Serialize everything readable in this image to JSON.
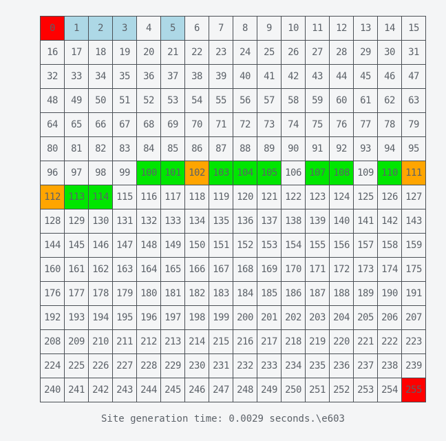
{
  "colors": {
    "default_bg": "#f4f5f6",
    "red": "#ff0000",
    "light_blue": "#add8e6",
    "green": "#00e600",
    "orange": "#ffa500"
  },
  "grid": {
    "cells": [
      {
        "label": "0",
        "state": "red"
      },
      {
        "label": "1",
        "state": "light_blue"
      },
      {
        "label": "2",
        "state": "light_blue"
      },
      {
        "label": "3",
        "state": "light_blue"
      },
      {
        "label": "4",
        "state": "default"
      },
      {
        "label": "5",
        "state": "light_blue"
      },
      {
        "label": "6",
        "state": "default"
      },
      {
        "label": "7",
        "state": "default"
      },
      {
        "label": "8",
        "state": "default"
      },
      {
        "label": "9",
        "state": "default"
      },
      {
        "label": "10",
        "state": "default"
      },
      {
        "label": "11",
        "state": "default"
      },
      {
        "label": "12",
        "state": "default"
      },
      {
        "label": "13",
        "state": "default"
      },
      {
        "label": "14",
        "state": "default"
      },
      {
        "label": "15",
        "state": "default"
      },
      {
        "label": "16",
        "state": "default"
      },
      {
        "label": "17",
        "state": "default"
      },
      {
        "label": "18",
        "state": "default"
      },
      {
        "label": "19",
        "state": "default"
      },
      {
        "label": "20",
        "state": "default"
      },
      {
        "label": "21",
        "state": "default"
      },
      {
        "label": "22",
        "state": "default"
      },
      {
        "label": "23",
        "state": "default"
      },
      {
        "label": "24",
        "state": "default"
      },
      {
        "label": "25",
        "state": "default"
      },
      {
        "label": "26",
        "state": "default"
      },
      {
        "label": "27",
        "state": "default"
      },
      {
        "label": "28",
        "state": "default"
      },
      {
        "label": "29",
        "state": "default"
      },
      {
        "label": "30",
        "state": "default"
      },
      {
        "label": "31",
        "state": "default"
      },
      {
        "label": "32",
        "state": "default"
      },
      {
        "label": "33",
        "state": "default"
      },
      {
        "label": "34",
        "state": "default"
      },
      {
        "label": "35",
        "state": "default"
      },
      {
        "label": "36",
        "state": "default"
      },
      {
        "label": "37",
        "state": "default"
      },
      {
        "label": "38",
        "state": "default"
      },
      {
        "label": "39",
        "state": "default"
      },
      {
        "label": "40",
        "state": "default"
      },
      {
        "label": "41",
        "state": "default"
      },
      {
        "label": "42",
        "state": "default"
      },
      {
        "label": "43",
        "state": "default"
      },
      {
        "label": "44",
        "state": "default"
      },
      {
        "label": "45",
        "state": "default"
      },
      {
        "label": "46",
        "state": "default"
      },
      {
        "label": "47",
        "state": "default"
      },
      {
        "label": "48",
        "state": "default"
      },
      {
        "label": "49",
        "state": "default"
      },
      {
        "label": "50",
        "state": "default"
      },
      {
        "label": "51",
        "state": "default"
      },
      {
        "label": "52",
        "state": "default"
      },
      {
        "label": "53",
        "state": "default"
      },
      {
        "label": "54",
        "state": "default"
      },
      {
        "label": "55",
        "state": "default"
      },
      {
        "label": "56",
        "state": "default"
      },
      {
        "label": "57",
        "state": "default"
      },
      {
        "label": "58",
        "state": "default"
      },
      {
        "label": "59",
        "state": "default"
      },
      {
        "label": "60",
        "state": "default"
      },
      {
        "label": "61",
        "state": "default"
      },
      {
        "label": "62",
        "state": "default"
      },
      {
        "label": "63",
        "state": "default"
      },
      {
        "label": "64",
        "state": "default"
      },
      {
        "label": "65",
        "state": "default"
      },
      {
        "label": "66",
        "state": "default"
      },
      {
        "label": "67",
        "state": "default"
      },
      {
        "label": "68",
        "state": "default"
      },
      {
        "label": "69",
        "state": "default"
      },
      {
        "label": "70",
        "state": "default"
      },
      {
        "label": "71",
        "state": "default"
      },
      {
        "label": "72",
        "state": "default"
      },
      {
        "label": "73",
        "state": "default"
      },
      {
        "label": "74",
        "state": "default"
      },
      {
        "label": "75",
        "state": "default"
      },
      {
        "label": "76",
        "state": "default"
      },
      {
        "label": "77",
        "state": "default"
      },
      {
        "label": "78",
        "state": "default"
      },
      {
        "label": "79",
        "state": "default"
      },
      {
        "label": "80",
        "state": "default"
      },
      {
        "label": "81",
        "state": "default"
      },
      {
        "label": "82",
        "state": "default"
      },
      {
        "label": "83",
        "state": "default"
      },
      {
        "label": "84",
        "state": "default"
      },
      {
        "label": "85",
        "state": "default"
      },
      {
        "label": "86",
        "state": "default"
      },
      {
        "label": "87",
        "state": "default"
      },
      {
        "label": "88",
        "state": "default"
      },
      {
        "label": "89",
        "state": "default"
      },
      {
        "label": "90",
        "state": "default"
      },
      {
        "label": "91",
        "state": "default"
      },
      {
        "label": "92",
        "state": "default"
      },
      {
        "label": "93",
        "state": "default"
      },
      {
        "label": "94",
        "state": "default"
      },
      {
        "label": "95",
        "state": "default"
      },
      {
        "label": "96",
        "state": "default"
      },
      {
        "label": "97",
        "state": "default"
      },
      {
        "label": "98",
        "state": "default"
      },
      {
        "label": "99",
        "state": "default"
      },
      {
        "label": "100",
        "state": "green"
      },
      {
        "label": "101",
        "state": "green"
      },
      {
        "label": "102",
        "state": "orange"
      },
      {
        "label": "103",
        "state": "green"
      },
      {
        "label": "104",
        "state": "green"
      },
      {
        "label": "105",
        "state": "green"
      },
      {
        "label": "106",
        "state": "default"
      },
      {
        "label": "107",
        "state": "green"
      },
      {
        "label": "108",
        "state": "green"
      },
      {
        "label": "109",
        "state": "default"
      },
      {
        "label": "110",
        "state": "green"
      },
      {
        "label": "111",
        "state": "orange"
      },
      {
        "label": "112",
        "state": "orange"
      },
      {
        "label": "113",
        "state": "green"
      },
      {
        "label": "114",
        "state": "green"
      },
      {
        "label": "115",
        "state": "default"
      },
      {
        "label": "116",
        "state": "default"
      },
      {
        "label": "117",
        "state": "default"
      },
      {
        "label": "118",
        "state": "default"
      },
      {
        "label": "119",
        "state": "default"
      },
      {
        "label": "120",
        "state": "default"
      },
      {
        "label": "121",
        "state": "default"
      },
      {
        "label": "122",
        "state": "default"
      },
      {
        "label": "123",
        "state": "default"
      },
      {
        "label": "124",
        "state": "default"
      },
      {
        "label": "125",
        "state": "default"
      },
      {
        "label": "126",
        "state": "default"
      },
      {
        "label": "127",
        "state": "default"
      },
      {
        "label": "128",
        "state": "default"
      },
      {
        "label": "129",
        "state": "default"
      },
      {
        "label": "130",
        "state": "default"
      },
      {
        "label": "131",
        "state": "default"
      },
      {
        "label": "132",
        "state": "default"
      },
      {
        "label": "133",
        "state": "default"
      },
      {
        "label": "134",
        "state": "default"
      },
      {
        "label": "135",
        "state": "default"
      },
      {
        "label": "136",
        "state": "default"
      },
      {
        "label": "137",
        "state": "default"
      },
      {
        "label": "138",
        "state": "default"
      },
      {
        "label": "139",
        "state": "default"
      },
      {
        "label": "140",
        "state": "default"
      },
      {
        "label": "141",
        "state": "default"
      },
      {
        "label": "142",
        "state": "default"
      },
      {
        "label": "143",
        "state": "default"
      },
      {
        "label": "144",
        "state": "default"
      },
      {
        "label": "145",
        "state": "default"
      },
      {
        "label": "146",
        "state": "default"
      },
      {
        "label": "147",
        "state": "default"
      },
      {
        "label": "148",
        "state": "default"
      },
      {
        "label": "149",
        "state": "default"
      },
      {
        "label": "150",
        "state": "default"
      },
      {
        "label": "151",
        "state": "default"
      },
      {
        "label": "152",
        "state": "default"
      },
      {
        "label": "153",
        "state": "default"
      },
      {
        "label": "154",
        "state": "default"
      },
      {
        "label": "155",
        "state": "default"
      },
      {
        "label": "156",
        "state": "default"
      },
      {
        "label": "157",
        "state": "default"
      },
      {
        "label": "158",
        "state": "default"
      },
      {
        "label": "159",
        "state": "default"
      },
      {
        "label": "160",
        "state": "default"
      },
      {
        "label": "161",
        "state": "default"
      },
      {
        "label": "162",
        "state": "default"
      },
      {
        "label": "163",
        "state": "default"
      },
      {
        "label": "164",
        "state": "default"
      },
      {
        "label": "165",
        "state": "default"
      },
      {
        "label": "166",
        "state": "default"
      },
      {
        "label": "167",
        "state": "default"
      },
      {
        "label": "168",
        "state": "default"
      },
      {
        "label": "169",
        "state": "default"
      },
      {
        "label": "170",
        "state": "default"
      },
      {
        "label": "171",
        "state": "default"
      },
      {
        "label": "172",
        "state": "default"
      },
      {
        "label": "173",
        "state": "default"
      },
      {
        "label": "174",
        "state": "default"
      },
      {
        "label": "175",
        "state": "default"
      },
      {
        "label": "176",
        "state": "default"
      },
      {
        "label": "177",
        "state": "default"
      },
      {
        "label": "178",
        "state": "default"
      },
      {
        "label": "179",
        "state": "default"
      },
      {
        "label": "180",
        "state": "default"
      },
      {
        "label": "181",
        "state": "default"
      },
      {
        "label": "182",
        "state": "default"
      },
      {
        "label": "183",
        "state": "default"
      },
      {
        "label": "184",
        "state": "default"
      },
      {
        "label": "185",
        "state": "default"
      },
      {
        "label": "186",
        "state": "default"
      },
      {
        "label": "187",
        "state": "default"
      },
      {
        "label": "188",
        "state": "default"
      },
      {
        "label": "189",
        "state": "default"
      },
      {
        "label": "190",
        "state": "default"
      },
      {
        "label": "191",
        "state": "default"
      },
      {
        "label": "192",
        "state": "default"
      },
      {
        "label": "193",
        "state": "default"
      },
      {
        "label": "194",
        "state": "default"
      },
      {
        "label": "195",
        "state": "default"
      },
      {
        "label": "196",
        "state": "default"
      },
      {
        "label": "197",
        "state": "default"
      },
      {
        "label": "198",
        "state": "default"
      },
      {
        "label": "199",
        "state": "default"
      },
      {
        "label": "200",
        "state": "default"
      },
      {
        "label": "201",
        "state": "default"
      },
      {
        "label": "202",
        "state": "default"
      },
      {
        "label": "203",
        "state": "default"
      },
      {
        "label": "204",
        "state": "default"
      },
      {
        "label": "205",
        "state": "default"
      },
      {
        "label": "206",
        "state": "default"
      },
      {
        "label": "207",
        "state": "default"
      },
      {
        "label": "208",
        "state": "default"
      },
      {
        "label": "209",
        "state": "default"
      },
      {
        "label": "210",
        "state": "default"
      },
      {
        "label": "211",
        "state": "default"
      },
      {
        "label": "212",
        "state": "default"
      },
      {
        "label": "213",
        "state": "default"
      },
      {
        "label": "214",
        "state": "default"
      },
      {
        "label": "215",
        "state": "default"
      },
      {
        "label": "216",
        "state": "default"
      },
      {
        "label": "217",
        "state": "default"
      },
      {
        "label": "218",
        "state": "default"
      },
      {
        "label": "219",
        "state": "default"
      },
      {
        "label": "220",
        "state": "default"
      },
      {
        "label": "221",
        "state": "default"
      },
      {
        "label": "222",
        "state": "default"
      },
      {
        "label": "223",
        "state": "default"
      },
      {
        "label": "224",
        "state": "default"
      },
      {
        "label": "225",
        "state": "default"
      },
      {
        "label": "226",
        "state": "default"
      },
      {
        "label": "227",
        "state": "default"
      },
      {
        "label": "228",
        "state": "default"
      },
      {
        "label": "229",
        "state": "default"
      },
      {
        "label": "230",
        "state": "default"
      },
      {
        "label": "231",
        "state": "default"
      },
      {
        "label": "232",
        "state": "default"
      },
      {
        "label": "233",
        "state": "default"
      },
      {
        "label": "234",
        "state": "default"
      },
      {
        "label": "235",
        "state": "default"
      },
      {
        "label": "236",
        "state": "default"
      },
      {
        "label": "237",
        "state": "default"
      },
      {
        "label": "238",
        "state": "default"
      },
      {
        "label": "239",
        "state": "default"
      },
      {
        "label": "240",
        "state": "default"
      },
      {
        "label": "241",
        "state": "default"
      },
      {
        "label": "242",
        "state": "default"
      },
      {
        "label": "243",
        "state": "default"
      },
      {
        "label": "244",
        "state": "default"
      },
      {
        "label": "245",
        "state": "default"
      },
      {
        "label": "246",
        "state": "default"
      },
      {
        "label": "247",
        "state": "default"
      },
      {
        "label": "248",
        "state": "default"
      },
      {
        "label": "249",
        "state": "default"
      },
      {
        "label": "250",
        "state": "default"
      },
      {
        "label": "251",
        "state": "default"
      },
      {
        "label": "252",
        "state": "default"
      },
      {
        "label": "253",
        "state": "default"
      },
      {
        "label": "254",
        "state": "default"
      },
      {
        "label": "255",
        "state": "red"
      }
    ]
  },
  "footer": {
    "text": "Site generation time: 0.0029 seconds.\\e603"
  }
}
